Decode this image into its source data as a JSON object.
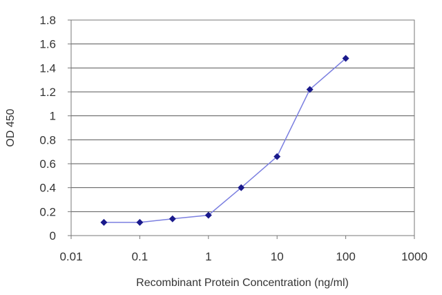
{
  "chart_data": {
    "type": "line",
    "title": "",
    "xlabel": "Recombinant Protein Concentration (ng/ml)",
    "ylabel": "OD 450",
    "x_scale": "log",
    "xlim": [
      0.01,
      1000
    ],
    "ylim": [
      0,
      1.8
    ],
    "x_ticks": [
      "0.01",
      "0.1",
      "1",
      "10",
      "100",
      "1000"
    ],
    "y_ticks": [
      "0",
      "0.2",
      "0.4",
      "0.6",
      "0.8",
      "1",
      "1.2",
      "1.4",
      "1.6",
      "1.8"
    ],
    "grid": "horizontal",
    "series": [
      {
        "x": [
          0.03,
          0.1,
          0.3,
          1,
          3,
          10,
          30,
          100
        ],
        "y": [
          0.11,
          0.11,
          0.14,
          0.17,
          0.4,
          0.66,
          1.22,
          1.48
        ]
      }
    ],
    "colors": {
      "line": "#7b7fe0",
      "marker": "#1a1a8c",
      "grid": "#555555",
      "frame": "#777777"
    }
  }
}
